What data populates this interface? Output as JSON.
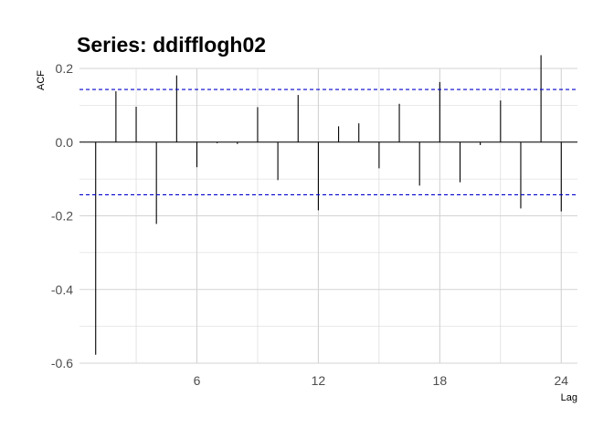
{
  "chart_data": {
    "type": "bar",
    "title": "Series: ddifflogh02",
    "xlabel": "Lag",
    "ylabel": "ACF",
    "xlim": [
      0.2,
      24.8
    ],
    "ylim": [
      -0.6,
      0.2
    ],
    "x_ticks": [
      6,
      12,
      18,
      24
    ],
    "y_ticks": [
      -0.6,
      -0.4,
      -0.2,
      0.0,
      0.2
    ],
    "y_tick_labels": [
      "-0.6",
      "-0.4",
      "-0.2",
      "0.0",
      "0.2"
    ],
    "x_minor_gridlines": [
      3,
      9,
      15,
      21
    ],
    "y_minor_gridlines": [
      -0.5,
      -0.3,
      -0.1,
      0.1
    ],
    "grid": true,
    "confidence_band": 0.143,
    "confidence_band_color": "#0000cc",
    "bar_color": "#000000",
    "grid_color": "#d3d3d3",
    "series": [
      {
        "lags": [
          1,
          2,
          3,
          4,
          5,
          6,
          7,
          8,
          9,
          10,
          11,
          12,
          13,
          14,
          15,
          16,
          17,
          18,
          19,
          20,
          21,
          22,
          23,
          24
        ],
        "values": [
          -0.577,
          0.138,
          0.096,
          -0.222,
          0.181,
          -0.068,
          -0.003,
          -0.005,
          0.095,
          -0.103,
          0.128,
          -0.185,
          0.043,
          0.051,
          -0.071,
          0.104,
          -0.118,
          0.163,
          -0.109,
          -0.008,
          0.113,
          -0.18,
          0.236,
          -0.188
        ]
      }
    ]
  }
}
